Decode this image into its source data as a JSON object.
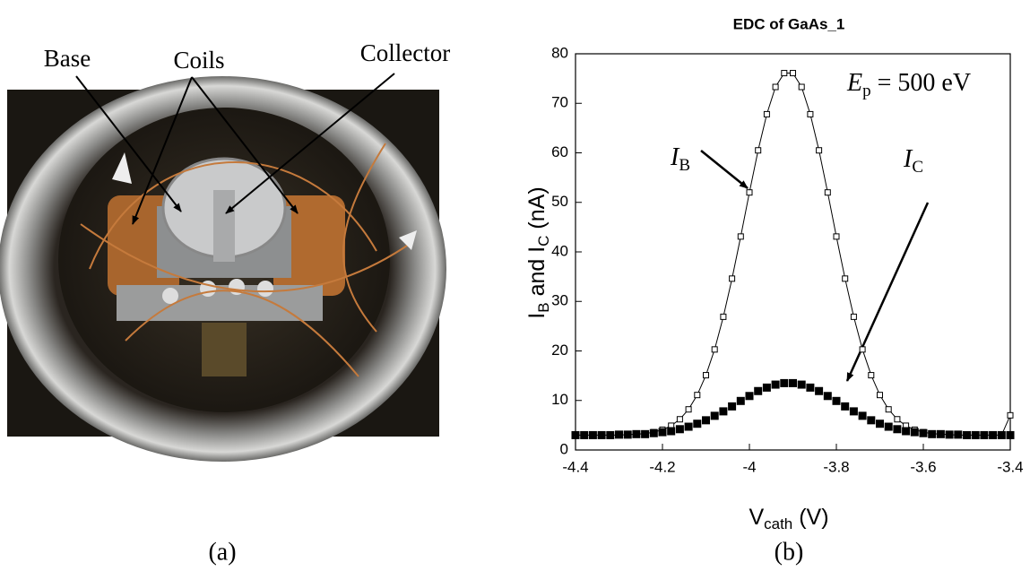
{
  "photo_panel": {
    "labels": {
      "base": "Base",
      "coils": "Coils",
      "collector": "Collector"
    },
    "caption": "(a)"
  },
  "chart_data": {
    "type": "line",
    "title": "EDC of GaAs_1",
    "caption": "(b)",
    "xlabel": [
      "V",
      "cath",
      " (V)"
    ],
    "ylabel": [
      "I",
      "B",
      " and I",
      "C",
      " (nA)"
    ],
    "annotations": [
      {
        "parts": [
          "I",
          "B"
        ]
      },
      {
        "parts": [
          "I",
          "C"
        ]
      },
      {
        "parts": [
          "E",
          "p",
          " = 500 eV"
        ]
      }
    ],
    "x": [
      -4.4,
      -4.38,
      -4.36,
      -4.34,
      -4.32,
      -4.3,
      -4.28,
      -4.26,
      -4.24,
      -4.22,
      -4.2,
      -4.18,
      -4.16,
      -4.14,
      -4.12,
      -4.1,
      -4.08,
      -4.06,
      -4.04,
      -4.02,
      -4,
      -3.98,
      -3.96,
      -3.94,
      -3.92,
      -3.9,
      -3.88,
      -3.86,
      -3.84,
      -3.82,
      -3.8,
      -3.78,
      -3.76,
      -3.74,
      -3.72,
      -3.7,
      -3.68,
      -3.66,
      -3.64,
      -3.62,
      -3.6,
      -3.58,
      -3.56,
      -3.54,
      -3.52,
      -3.5,
      -3.48,
      -3.46,
      -3.44,
      -3.42,
      -3.4
    ],
    "series": [
      {
        "color": "#000000",
        "marker": "open-square",
        "line": true,
        "values": [
          3,
          3,
          3,
          3,
          3,
          3,
          3.1,
          3.2,
          3.3,
          3.6,
          4.1,
          4.9,
          6.2,
          8.2,
          11.1,
          15.1,
          20.3,
          26.9,
          34.6,
          43.1,
          52,
          60.5,
          67.8,
          73.3,
          76.1,
          76.1,
          73.3,
          67.8,
          60.5,
          52,
          43.1,
          34.6,
          26.9,
          20.3,
          15.1,
          11.1,
          8.2,
          6.2,
          4.9,
          4.1,
          3.6,
          3.3,
          3.2,
          3.1,
          3,
          3,
          3,
          3,
          3,
          3,
          7
        ]
      },
      {
        "color": "#000000",
        "marker": "filled-square",
        "line": false,
        "values": [
          3,
          3,
          3,
          3,
          3,
          3.1,
          3.1,
          3.2,
          3.2,
          3.4,
          3.6,
          3.8,
          4.2,
          4.7,
          5.3,
          6,
          6.9,
          7.8,
          8.8,
          9.9,
          10.9,
          11.9,
          12.6,
          13.2,
          13.5,
          13.5,
          13.2,
          12.6,
          11.9,
          10.9,
          9.9,
          8.8,
          7.8,
          6.9,
          6,
          5.3,
          4.7,
          4.2,
          3.8,
          3.6,
          3.4,
          3.2,
          3.2,
          3.1,
          3.1,
          3,
          3,
          3,
          3,
          3,
          3
        ]
      }
    ],
    "xlim": [
      -4.4,
      -3.4
    ],
    "xticks": [
      -4.4,
      -4.2,
      -4,
      -3.8,
      -3.6,
      -3.4
    ],
    "ylim": [
      0,
      80
    ],
    "yticks": [
      0,
      10,
      20,
      30,
      40,
      50,
      60,
      70,
      80
    ]
  }
}
